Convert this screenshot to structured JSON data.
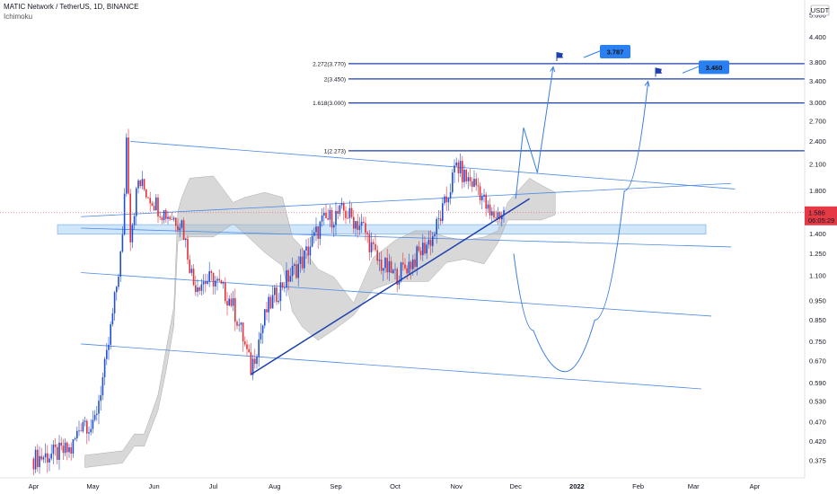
{
  "header": {
    "title": "MATIC Network / TetherUS, 1D, BINANCE",
    "indicator": "Ichimoku"
  },
  "colors": {
    "accent_blue": "#1e3fae",
    "up_candle": "#1e4fd8",
    "down_candle": "#e0323a",
    "cloud": "#b8b8b8",
    "zone": "#a9d1f5",
    "price_tag": "#e53945",
    "callout": "#2a80f0"
  },
  "chart_data": {
    "type": "candlestick",
    "symbol": "MATIC Network / TetherUS",
    "timeframe": "1D",
    "exchange": "BINANCE",
    "y_scale": "log",
    "ylim": [
      0.34,
      5.4
    ],
    "currency_label": "USDT",
    "y_ticks": [
      "5.000",
      "4.400",
      "3.800",
      "3.400",
      "3.000",
      "2.700",
      "2.400",
      "2.100",
      "1.800",
      "1.586",
      "1.400",
      "1.250",
      "1.100",
      "0.950",
      "0.850",
      "0.750",
      "0.670",
      "0.590",
      "0.530",
      "0.470",
      "0.420",
      "0.375"
    ],
    "x_ticks": [
      "Apr",
      "May",
      "Jun",
      "Jul",
      "Aug",
      "Sep",
      "Oct",
      "Nov",
      "Dec",
      "2022",
      "Feb",
      "Mar",
      "Apr"
    ],
    "fib_levels": [
      {
        "label": "2.272(3.770)",
        "value": 3.77
      },
      {
        "label": "2(3.450)",
        "value": 3.45
      },
      {
        "label": "1.618(3.000)",
        "value": 3.0
      },
      {
        "label": "1(2.273)",
        "value": 2.273
      }
    ],
    "targets": [
      {
        "label": "3.787",
        "value": 3.787,
        "date": "2021-12-20"
      },
      {
        "label": "3.460",
        "value": 3.46,
        "date": "2022-02-08"
      }
    ],
    "current_price": {
      "value": 1.586,
      "countdown": "06:05:29"
    },
    "support_zone": [
      1.4,
      1.48
    ],
    "trendline": {
      "from": {
        "date": "2021-07-20",
        "price": 0.62
      },
      "to": {
        "date": "2021-12-08",
        "price": 1.72
      }
    },
    "close_series": [
      {
        "date": "2021-04-01",
        "price": 0.38
      },
      {
        "date": "2021-04-20",
        "price": 0.4
      },
      {
        "date": "2021-04-26",
        "price": 0.48
      },
      {
        "date": "2021-05-01",
        "price": 0.45
      },
      {
        "date": "2021-05-08",
        "price": 0.68
      },
      {
        "date": "2021-05-12",
        "price": 0.95
      },
      {
        "date": "2021-05-16",
        "price": 1.35
      },
      {
        "date": "2021-05-18",
        "price": 2.45
      },
      {
        "date": "2021-05-20",
        "price": 1.4
      },
      {
        "date": "2021-05-24",
        "price": 1.9
      },
      {
        "date": "2021-06-05",
        "price": 1.6
      },
      {
        "date": "2021-06-15",
        "price": 1.5
      },
      {
        "date": "2021-06-21",
        "price": 1.05
      },
      {
        "date": "2021-07-01",
        "price": 1.08
      },
      {
        "date": "2021-07-10",
        "price": 0.95
      },
      {
        "date": "2021-07-15",
        "price": 0.8
      },
      {
        "date": "2021-07-20",
        "price": 0.64
      },
      {
        "date": "2021-07-28",
        "price": 0.9
      },
      {
        "date": "2021-08-05",
        "price": 1.05
      },
      {
        "date": "2021-08-15",
        "price": 1.2
      },
      {
        "date": "2021-08-25",
        "price": 1.5
      },
      {
        "date": "2021-09-05",
        "price": 1.6
      },
      {
        "date": "2021-09-15",
        "price": 1.45
      },
      {
        "date": "2021-09-22",
        "price": 1.2
      },
      {
        "date": "2021-10-01",
        "price": 1.1
      },
      {
        "date": "2021-10-10",
        "price": 1.2
      },
      {
        "date": "2021-10-20",
        "price": 1.38
      },
      {
        "date": "2021-10-27",
        "price": 1.7
      },
      {
        "date": "2021-11-01",
        "price": 2.1
      },
      {
        "date": "2021-11-05",
        "price": 1.95
      },
      {
        "date": "2021-11-12",
        "price": 1.85
      },
      {
        "date": "2021-11-18",
        "price": 1.55
      },
      {
        "date": "2021-11-25",
        "price": 1.586
      }
    ],
    "projections": [
      {
        "name": "bullish",
        "points": [
          {
            "date": "2021-12-01",
            "price": 1.72
          },
          {
            "date": "2021-12-05",
            "price": 2.6
          },
          {
            "date": "2021-12-12",
            "price": 2.0
          },
          {
            "date": "2021-12-20",
            "price": 3.7
          }
        ]
      },
      {
        "name": "bearish",
        "points": [
          {
            "date": "2021-11-30",
            "price": 1.25
          },
          {
            "date": "2021-12-10",
            "price": 0.8
          },
          {
            "date": "2021-12-26",
            "price": 0.63
          },
          {
            "date": "2022-01-10",
            "price": 0.85
          },
          {
            "date": "2022-01-25",
            "price": 1.8
          },
          {
            "date": "2022-02-06",
            "price": 3.4
          }
        ]
      }
    ]
  }
}
